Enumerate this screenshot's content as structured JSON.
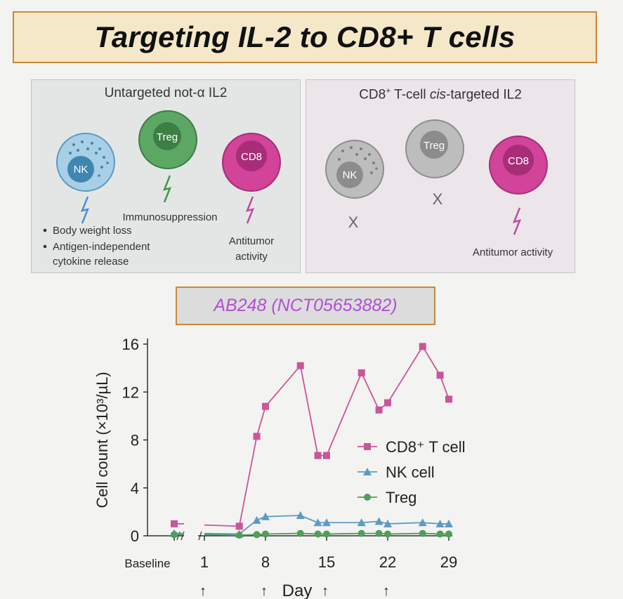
{
  "title": "Targeting IL-2 to CD8+ T cells",
  "left_panel": {
    "title": "Untargeted not-α IL2",
    "cells": {
      "nk": "NK",
      "treg": "Treg",
      "cd8": "CD8"
    },
    "effects": {
      "treg": "Immunosuppression",
      "cd8_line1": "Antitumor",
      "cd8_line2": "activity",
      "nk_bullet1": "Body weight loss",
      "nk_bullet2_line1": "Antigen-independent",
      "nk_bullet2_line2": "cytokine release"
    }
  },
  "right_panel": {
    "title_pre": "CD8",
    "title_sup": "+",
    "title_mid": " T-cell ",
    "title_italic": "cis",
    "title_post": "-targeted IL2",
    "cells": {
      "nk": "NK",
      "treg": "Treg",
      "cd8": "CD8"
    },
    "blocked_mark": "X",
    "cd8_effect": "Antitumor activity"
  },
  "subtitle": "AB248 (NCT05653882)",
  "colors": {
    "cd8": "#c9559a",
    "nk": "#5b9bc2",
    "treg": "#4f9e59",
    "title_border": "#c8883a",
    "subtitle_text": "#b24fd3"
  },
  "chart_data": {
    "type": "line",
    "ylabel": "Cell count (×10³/µL)",
    "xlabel": "Day",
    "ylim": [
      0,
      16
    ],
    "yticks": [
      0,
      4,
      8,
      12,
      16
    ],
    "xticks": [
      "Baseline",
      "1",
      "8",
      "15",
      "22",
      "29"
    ],
    "xtick_values": [
      -3,
      1,
      8,
      15,
      22,
      29
    ],
    "dosing_days": [
      1,
      8,
      15,
      22
    ],
    "dosing_mark": "↑",
    "legend_position": "right",
    "series": [
      {
        "name": "CD8⁺ T cell",
        "marker": "square",
        "color": "#c9559a",
        "baseline": 1.0,
        "x": [
          1,
          5,
          7,
          8,
          12,
          14,
          15,
          19,
          21,
          22,
          26,
          28,
          29
        ],
        "values": [
          0.9,
          0.8,
          8.3,
          10.8,
          14.2,
          6.7,
          6.7,
          13.6,
          10.5,
          11.1,
          15.8,
          13.4,
          11.4
        ]
      },
      {
        "name": "NK cell",
        "marker": "triangle",
        "color": "#5b9bc2",
        "baseline": 0.2,
        "x": [
          1,
          5,
          7,
          8,
          12,
          14,
          15,
          19,
          21,
          22,
          26,
          28,
          29
        ],
        "values": [
          0.2,
          0.15,
          1.3,
          1.6,
          1.7,
          1.1,
          1.1,
          1.1,
          1.2,
          1.0,
          1.1,
          1.0,
          1.0
        ]
      },
      {
        "name": "Treg",
        "marker": "circle",
        "color": "#4f9e59",
        "baseline": 0.1,
        "x": [
          1,
          5,
          7,
          8,
          12,
          14,
          15,
          19,
          21,
          22,
          26,
          28,
          29
        ],
        "values": [
          0.1,
          0.05,
          0.1,
          0.15,
          0.2,
          0.15,
          0.15,
          0.2,
          0.2,
          0.15,
          0.2,
          0.15,
          0.15
        ]
      }
    ]
  }
}
